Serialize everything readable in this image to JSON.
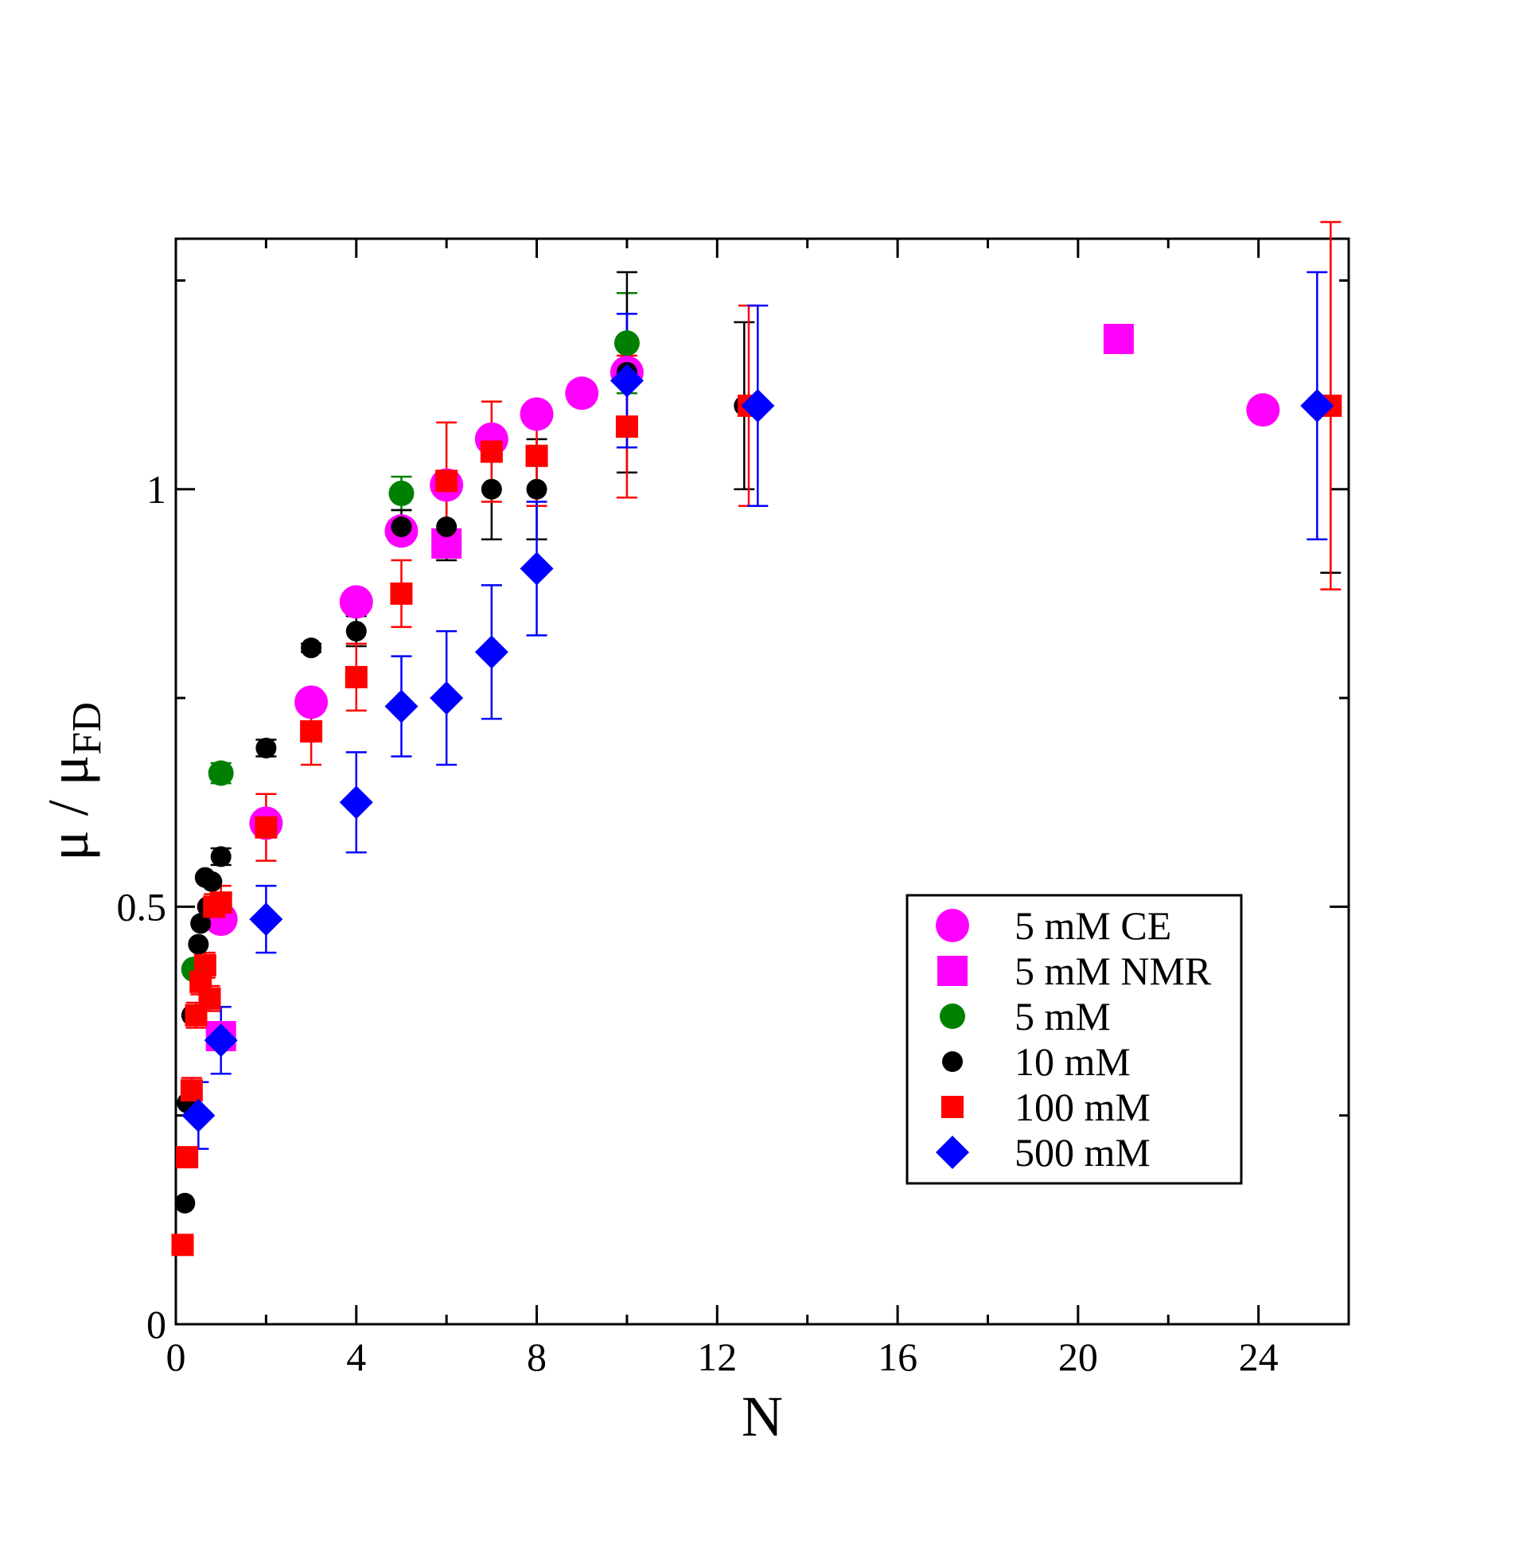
{
  "chart_data": {
    "type": "scatter",
    "title": "",
    "xlabel": "N",
    "ylabel_main": "μ / μ",
    "ylabel_sub": "FD",
    "xlim": [
      0,
      26
    ],
    "ylim": [
      0,
      1.3
    ],
    "x_ticks": [
      0,
      4,
      8,
      12,
      16,
      20,
      24
    ],
    "x_tick_labels": [
      "0",
      "4",
      "8",
      "12",
      "16",
      "20",
      "24"
    ],
    "y_ticks": [
      0,
      0.5,
      1
    ],
    "y_tick_labels": [
      "0",
      "0.5",
      "1"
    ],
    "x_minor_ticks": [
      2,
      6,
      10,
      14,
      18,
      22
    ],
    "y_minor_ticks": [
      0.25,
      0.75,
      1.25
    ],
    "legend_position": "lower-right",
    "series": [
      {
        "name": "5 mM CE",
        "marker": "circle-large",
        "color": "#ff00ff",
        "points": [
          {
            "x": 1.0,
            "y": 0.485
          },
          {
            "x": 2.0,
            "y": 0.6
          },
          {
            "x": 3.0,
            "y": 0.745
          },
          {
            "x": 4.0,
            "y": 0.865
          },
          {
            "x": 5.0,
            "y": 0.95
          },
          {
            "x": 6.0,
            "y": 1.005
          },
          {
            "x": 7.0,
            "y": 1.06
          },
          {
            "x": 8.0,
            "y": 1.09
          },
          {
            "x": 9.0,
            "y": 1.115
          },
          {
            "x": 10.0,
            "y": 1.14
          },
          {
            "x": 24.1,
            "y": 1.095
          }
        ]
      },
      {
        "name": "5 mM NMR",
        "marker": "square-large",
        "color": "#ff00ff",
        "points": [
          {
            "x": 1.0,
            "y": 0.345
          },
          {
            "x": 6.0,
            "y": 0.935
          },
          {
            "x": 20.9,
            "y": 1.18
          }
        ]
      },
      {
        "name": "5 mM",
        "marker": "circle",
        "color": "#008000",
        "points": [
          {
            "x": 0.4,
            "y": 0.425
          },
          {
            "x": 1.0,
            "y": 0.66,
            "err": 0.012
          },
          {
            "x": 5.0,
            "y": 0.995,
            "err": 0.02
          },
          {
            "x": 10.0,
            "y": 1.175,
            "err": 0.06
          }
        ]
      },
      {
        "name": "10 mM",
        "marker": "circle-small",
        "color": "#000000",
        "points": [
          {
            "x": 0.2,
            "y": 0.145
          },
          {
            "x": 0.25,
            "y": 0.265
          },
          {
            "x": 0.35,
            "y": 0.37
          },
          {
            "x": 0.5,
            "y": 0.455
          },
          {
            "x": 0.55,
            "y": 0.48
          },
          {
            "x": 0.65,
            "y": 0.535
          },
          {
            "x": 0.7,
            "y": 0.5
          },
          {
            "x": 0.8,
            "y": 0.53
          },
          {
            "x": 1.0,
            "y": 0.56,
            "err": 0.01
          },
          {
            "x": 2.0,
            "y": 0.69,
            "err": 0.01
          },
          {
            "x": 3.0,
            "y": 0.81,
            "err": 0.005
          },
          {
            "x": 4.0,
            "y": 0.83,
            "err": 0.018
          },
          {
            "x": 5.0,
            "y": 0.955,
            "err": 0.02
          },
          {
            "x": 6.0,
            "y": 0.955,
            "err": 0.04
          },
          {
            "x": 7.0,
            "y": 1.0,
            "err": 0.06
          },
          {
            "x": 8.0,
            "y": 1.0,
            "err": 0.06
          },
          {
            "x": 10.0,
            "y": 1.14,
            "err": 0.12
          },
          {
            "x": 12.6,
            "y": 1.1,
            "err": 0.1
          },
          {
            "x": 25.6,
            "y": 1.1,
            "err": 0.2
          }
        ]
      },
      {
        "name": "100 mM",
        "marker": "square",
        "color": "#ff0000",
        "points": [
          {
            "x": 0.15,
            "y": 0.095,
            "err": 0.008
          },
          {
            "x": 0.25,
            "y": 0.2,
            "err": 0.01
          },
          {
            "x": 0.35,
            "y": 0.28,
            "err": 0.015
          },
          {
            "x": 0.45,
            "y": 0.37,
            "err": 0.015
          },
          {
            "x": 0.55,
            "y": 0.41,
            "err": 0.015
          },
          {
            "x": 0.65,
            "y": 0.43,
            "err": 0.015
          },
          {
            "x": 0.75,
            "y": 0.39,
            "err": 0.015
          },
          {
            "x": 0.85,
            "y": 0.5,
            "err": 0.015
          },
          {
            "x": 1.0,
            "y": 0.505,
            "err": 0.02
          },
          {
            "x": 2.0,
            "y": 0.595,
            "err": 0.04
          },
          {
            "x": 3.0,
            "y": 0.71,
            "err": 0.04
          },
          {
            "x": 4.0,
            "y": 0.775,
            "err": 0.04
          },
          {
            "x": 5.0,
            "y": 0.875,
            "err": 0.04
          },
          {
            "x": 6.0,
            "y": 1.01,
            "err": 0.07
          },
          {
            "x": 7.0,
            "y": 1.045,
            "err": 0.06
          },
          {
            "x": 8.0,
            "y": 1.04,
            "err": 0.06
          },
          {
            "x": 10.0,
            "y": 1.075,
            "err": 0.085
          },
          {
            "x": 12.7,
            "y": 1.1,
            "err": 0.12
          },
          {
            "x": 25.6,
            "y": 1.1,
            "err": 0.22
          }
        ]
      },
      {
        "name": "500 mM",
        "marker": "diamond",
        "color": "#0000ff",
        "points": [
          {
            "x": 0.5,
            "y": 0.25,
            "err": 0.04
          },
          {
            "x": 1.0,
            "y": 0.34,
            "err": 0.04
          },
          {
            "x": 2.0,
            "y": 0.485,
            "err": 0.04
          },
          {
            "x": 4.0,
            "y": 0.625,
            "err": 0.06
          },
          {
            "x": 5.0,
            "y": 0.74,
            "err": 0.06
          },
          {
            "x": 6.0,
            "y": 0.75,
            "err": 0.08
          },
          {
            "x": 7.0,
            "y": 0.805,
            "err": 0.08
          },
          {
            "x": 8.0,
            "y": 0.905,
            "err": 0.08
          },
          {
            "x": 10.0,
            "y": 1.13,
            "err": 0.08
          },
          {
            "x": 12.9,
            "y": 1.1,
            "err": 0.12
          },
          {
            "x": 25.3,
            "y": 1.1,
            "err": 0.16
          }
        ]
      }
    ]
  }
}
